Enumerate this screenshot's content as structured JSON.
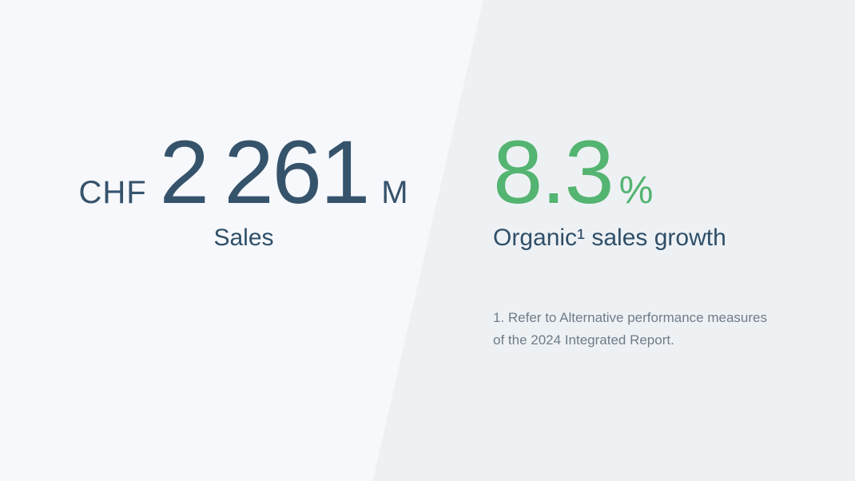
{
  "sales_kpi": {
    "currency": "CHF",
    "value": "2 261",
    "unit": "M",
    "label": "Sales"
  },
  "growth_kpi": {
    "value": "8.3",
    "unit": "%",
    "label": "Organic¹ sales growth"
  },
  "footnote": {
    "lines": [
      "1. Refer to Alternative performance measures",
      "of the 2024 Integrated Report."
    ]
  },
  "colors": {
    "left_panel_bg": "#f6f8fb",
    "right_panel_bg": "#eef1f4",
    "dark_slate_text": "#36536c",
    "accent_green": "#54b471",
    "footnote_gray": "#6f7c89"
  }
}
